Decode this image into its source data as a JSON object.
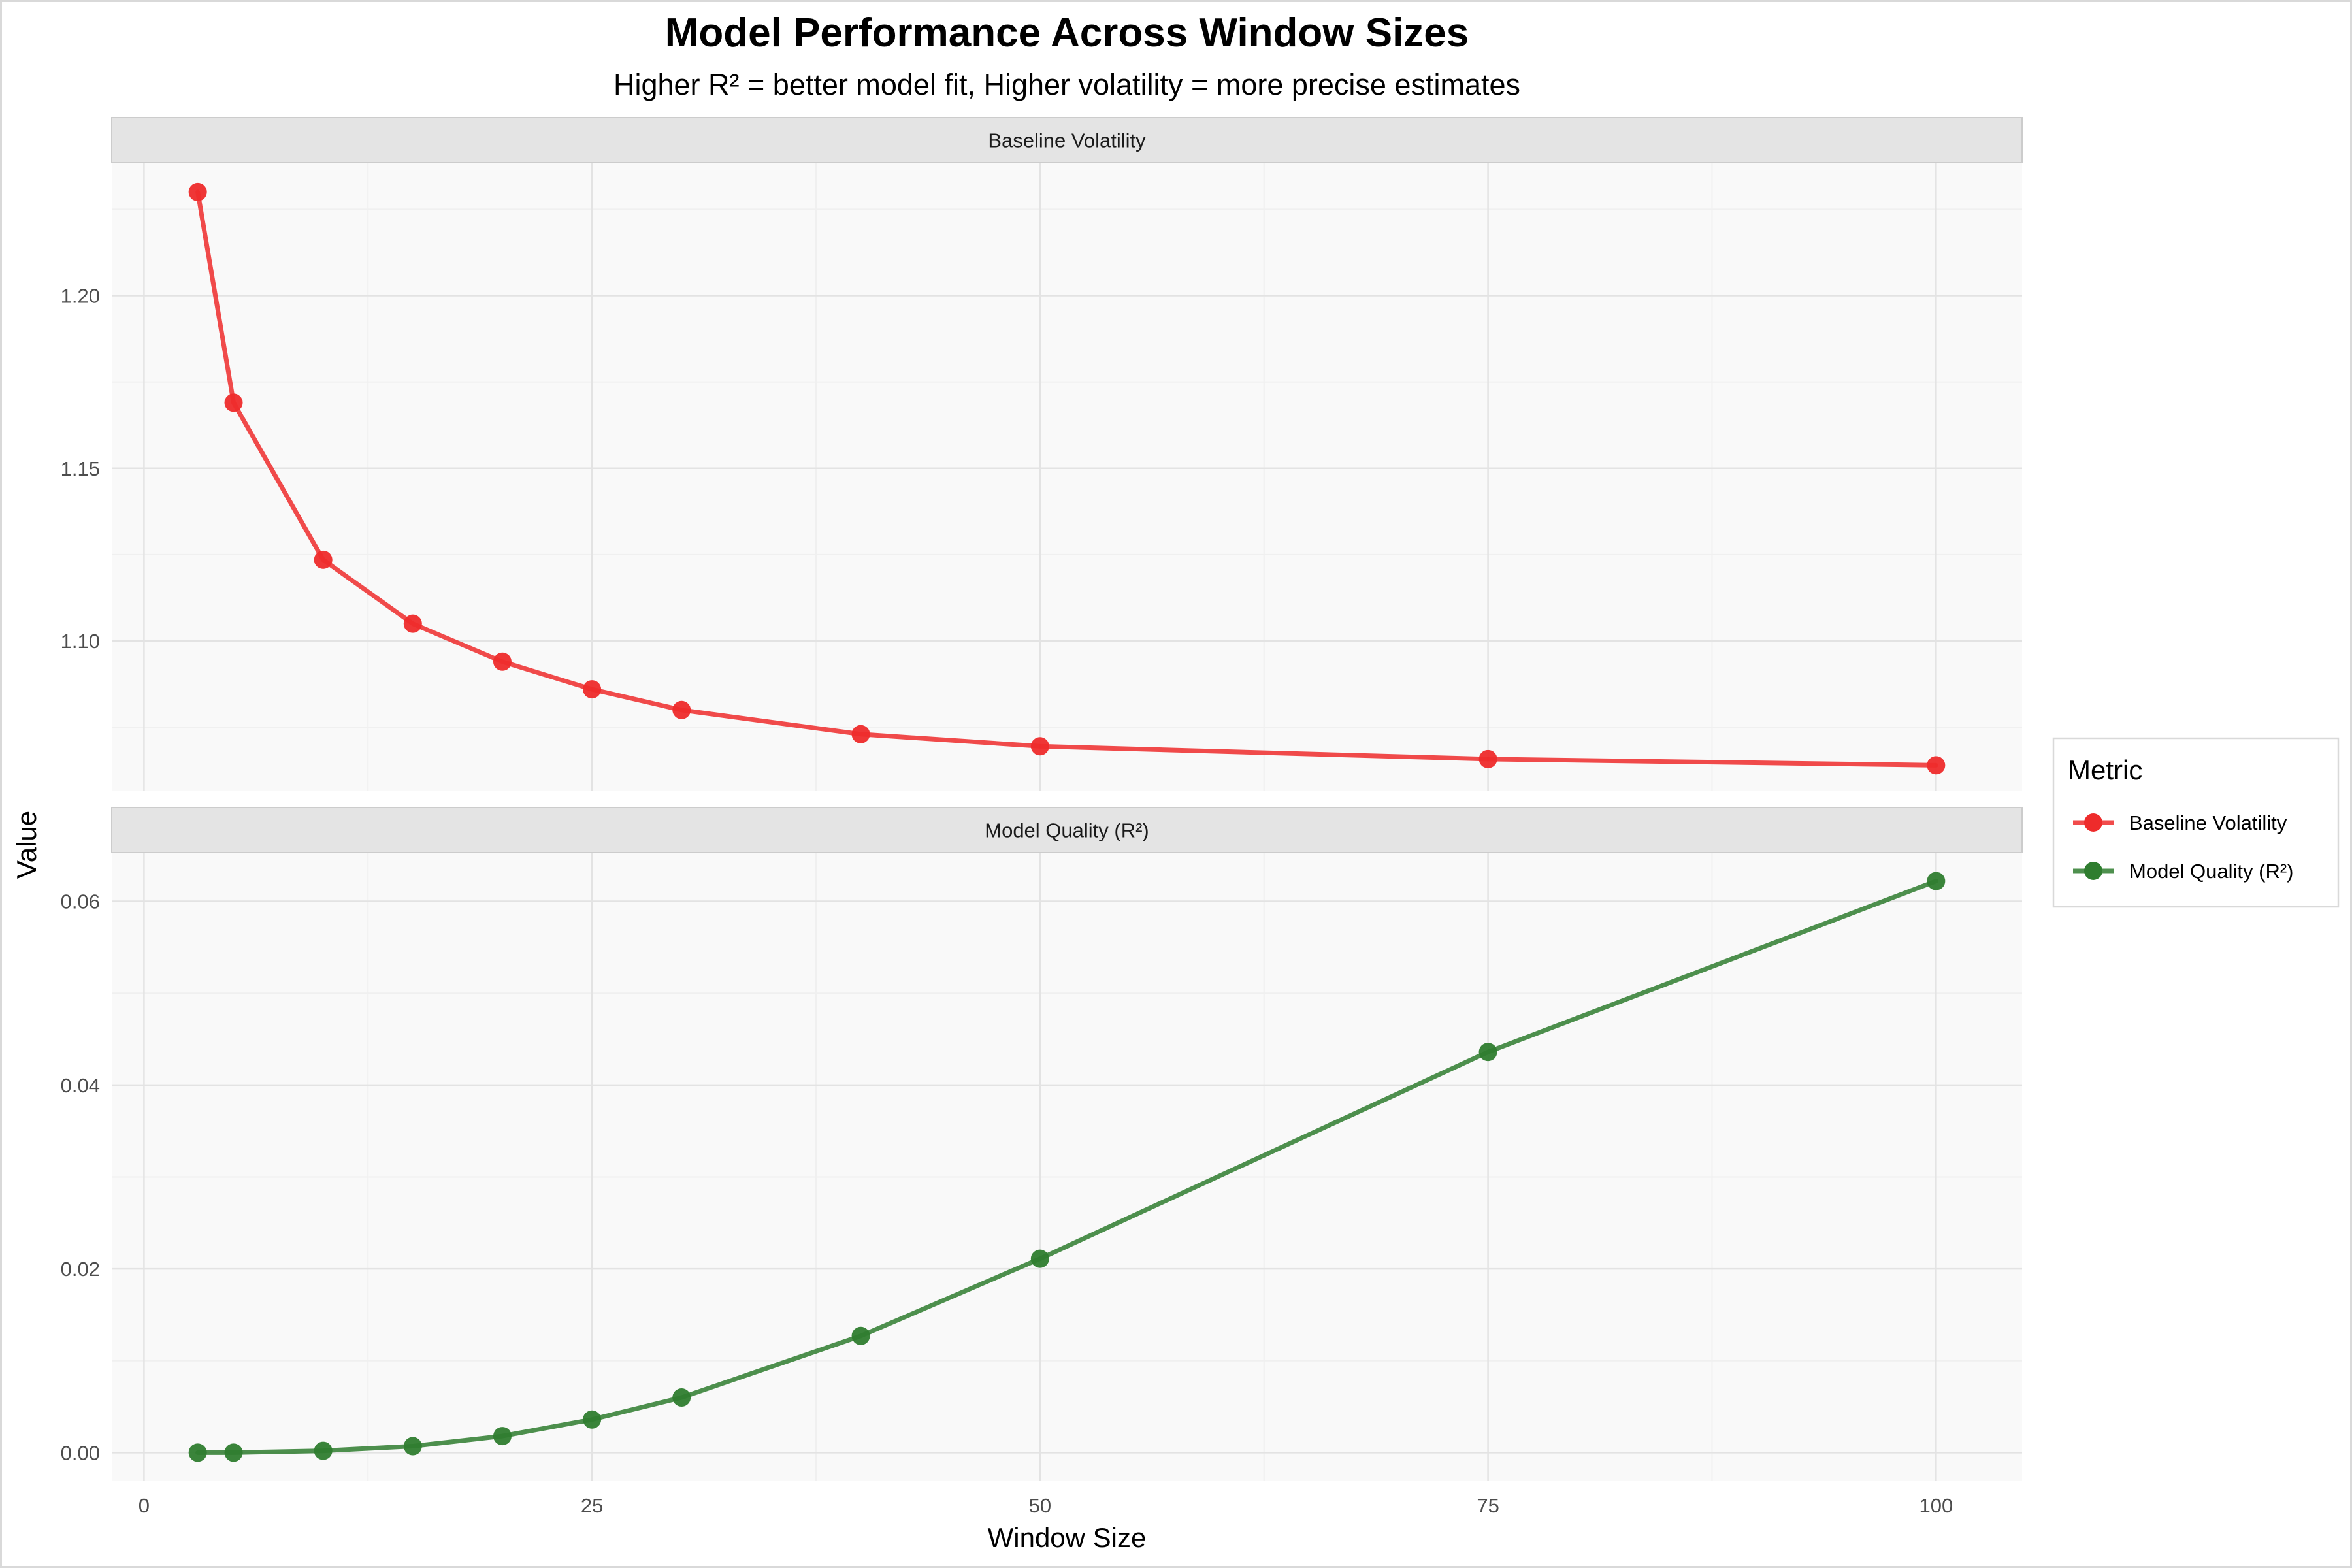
{
  "chart_data": {
    "type": "line",
    "title": "Model Performance Across Window Sizes",
    "subtitle": "Higher R² = better model fit, Higher volatility = more precise estimates",
    "xlabel": "Window Size",
    "ylabel": "Value",
    "x": [
      3,
      5,
      10,
      15,
      20,
      25,
      30,
      40,
      50,
      75,
      100
    ],
    "xlim": [
      -1.8,
      104.8
    ],
    "xticks": [
      0,
      25,
      50,
      75,
      100
    ],
    "grid": true,
    "legend": {
      "title": "Metric",
      "position": "right",
      "entries": [
        "Baseline Volatility",
        "Model Quality (R²)"
      ]
    },
    "panels": [
      {
        "strip_label": "Baseline Volatility",
        "series_name": "Baseline Volatility",
        "color": "#ee2b2b",
        "values": [
          1.23,
          1.169,
          1.1235,
          1.105,
          1.094,
          1.086,
          1.08,
          1.073,
          1.0695,
          1.0658,
          1.064
        ],
        "ylim": [
          1.0565,
          1.2385
        ],
        "yticks": [
          1.1,
          1.15,
          1.2
        ],
        "ytick_labels": [
          "1.10",
          "1.15",
          "1.20"
        ]
      },
      {
        "strip_label": "Model Quality (R²)",
        "series_name": "Model Quality (R²)",
        "color": "#2f7d2f",
        "values": [
          0.0,
          0.0,
          0.0002,
          0.0007,
          0.0018,
          0.0036,
          0.006,
          0.0127,
          0.0211,
          0.0436,
          0.0622
        ],
        "ylim": [
          -0.0031,
          0.0653
        ],
        "yticks": [
          0.0,
          0.02,
          0.04,
          0.06
        ],
        "ytick_labels": [
          "0.00",
          "0.02",
          "0.04",
          "0.06"
        ]
      }
    ]
  }
}
